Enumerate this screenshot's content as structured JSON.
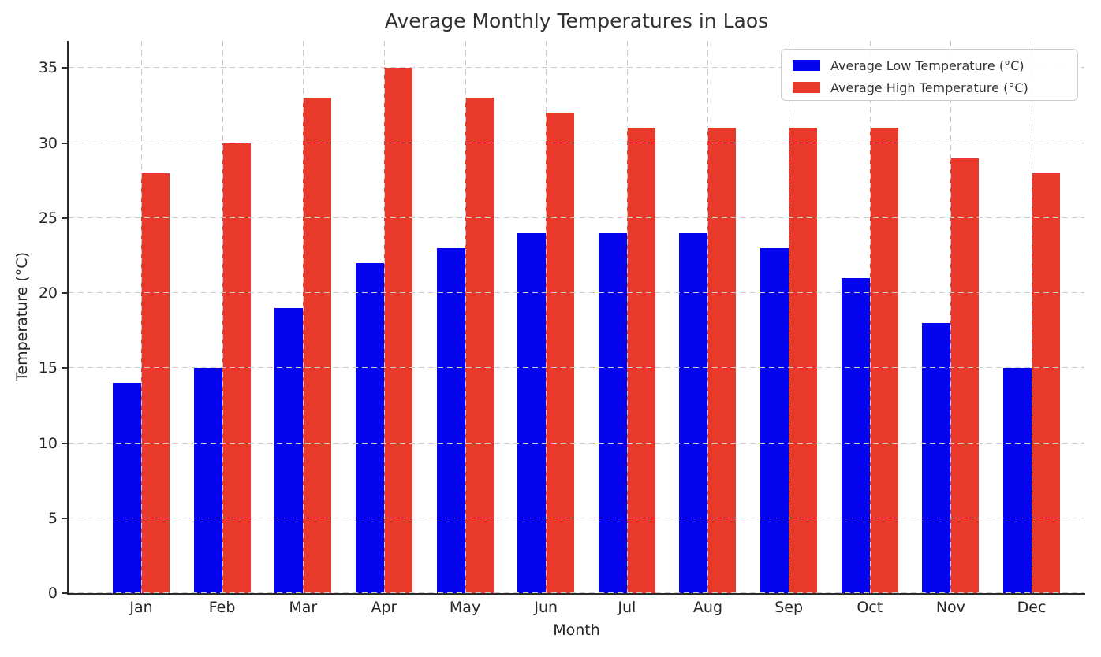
{
  "title": "Average Monthly Temperatures in Laos",
  "chart_data": {
    "type": "bar",
    "title": "Average Monthly Temperatures in Laos",
    "xlabel": "Month",
    "ylabel": "Temperature (°C)",
    "categories": [
      "Jan",
      "Feb",
      "Mar",
      "Apr",
      "May",
      "Jun",
      "Jul",
      "Aug",
      "Sep",
      "Oct",
      "Nov",
      "Dec"
    ],
    "series": [
      {
        "name": "Average Low Temperature (°C)",
        "color": "#0404ee",
        "values": [
          14,
          15,
          19,
          22,
          23,
          24,
          24,
          24,
          23,
          21,
          18,
          15
        ]
      },
      {
        "name": "Average High Temperature (°C)",
        "color": "#e8392a",
        "values": [
          28,
          30,
          33,
          35,
          33,
          32,
          31,
          31,
          31,
          31,
          29,
          28
        ]
      }
    ],
    "yticks": [
      0,
      5,
      10,
      15,
      20,
      25,
      30,
      35
    ],
    "ylim": [
      0,
      36.8
    ],
    "grid": "dashed, drawn above bars",
    "legend_position": "upper right"
  },
  "colors": {
    "low_bar": "#0404ee",
    "high_bar": "#e8392a",
    "grid": "#cbcbcb",
    "spine": "#2b2b2b",
    "text": "#262626",
    "background": "#ffffff"
  }
}
